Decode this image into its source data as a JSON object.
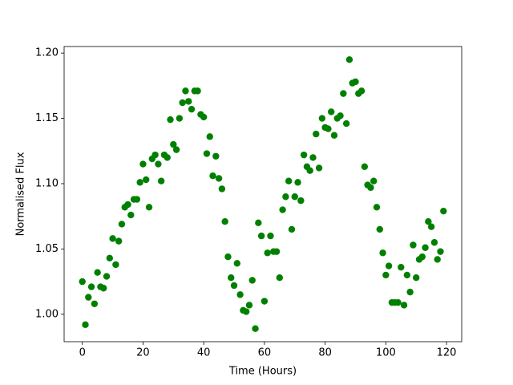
{
  "chart_data": {
    "type": "scatter",
    "x_label": "Time (Hours)",
    "y_label": "Normalised Flux",
    "color": "green",
    "grid": false,
    "xlim": [
      -6,
      125
    ],
    "ylim": [
      0.979,
      1.205
    ],
    "xticks": [
      0,
      20,
      40,
      60,
      80,
      100,
      120
    ],
    "yticks": [
      {
        "value": 1.0,
        "label": "1.00"
      },
      {
        "value": 1.05,
        "label": "1.05"
      },
      {
        "value": 1.1,
        "label": "1.10"
      },
      {
        "value": 1.15,
        "label": "1.15"
      },
      {
        "value": 1.2,
        "label": "1.20"
      }
    ],
    "x": [
      0,
      1,
      2,
      3,
      4,
      5,
      6,
      7,
      8,
      9,
      10,
      11,
      12,
      13,
      14,
      15,
      16,
      17,
      18,
      19,
      20,
      21,
      22,
      23,
      24,
      25,
      26,
      27,
      28,
      29,
      30,
      31,
      32,
      33,
      34,
      35,
      36,
      37,
      38,
      39,
      40,
      41,
      42,
      43,
      44,
      45,
      46,
      47,
      48,
      49,
      50,
      51,
      52,
      53,
      54,
      55,
      56,
      57,
      58,
      59,
      60,
      61,
      62,
      63,
      64,
      65,
      66,
      67,
      68,
      69,
      70,
      71,
      72,
      73,
      74,
      75,
      76,
      77,
      78,
      79,
      80,
      81,
      82,
      83,
      84,
      85,
      86,
      87,
      88,
      89,
      90,
      91,
      92,
      93,
      94,
      95,
      96,
      97,
      98,
      99,
      100,
      101,
      102,
      103,
      104,
      105,
      106,
      107,
      108,
      109,
      110,
      111,
      112,
      113,
      114,
      115,
      116,
      117,
      118,
      119
    ],
    "values": [
      1.025,
      0.992,
      1.013,
      1.021,
      1.008,
      1.032,
      1.021,
      1.02,
      1.029,
      1.043,
      1.058,
      1.038,
      1.056,
      1.069,
      1.082,
      1.084,
      1.076,
      1.088,
      1.088,
      1.101,
      1.115,
      1.103,
      1.082,
      1.119,
      1.122,
      1.115,
      1.102,
      1.122,
      1.12,
      1.149,
      1.13,
      1.126,
      1.15,
      1.162,
      1.171,
      1.163,
      1.157,
      1.171,
      1.171,
      1.153,
      1.151,
      1.123,
      1.136,
      1.106,
      1.121,
      1.104,
      1.096,
      1.071,
      1.044,
      1.028,
      1.022,
      1.039,
      1.015,
      1.003,
      1.002,
      1.007,
      1.026,
      0.989,
      1.07,
      1.06,
      1.01,
      1.047,
      1.06,
      1.048,
      1.048,
      1.028,
      1.08,
      1.09,
      1.102,
      1.065,
      1.09,
      1.101,
      1.087,
      1.122,
      1.113,
      1.11,
      1.12,
      1.138,
      1.112,
      1.15,
      1.143,
      1.142,
      1.155,
      1.137,
      1.15,
      1.152,
      1.169,
      1.146,
      1.195,
      1.177,
      1.178,
      1.169,
      1.171,
      1.113,
      1.099,
      1.097,
      1.102,
      1.082,
      1.065,
      1.047,
      1.03,
      1.037,
      1.009,
      1.009,
      1.009,
      1.036,
      1.007,
      1.03,
      1.017,
      1.053,
      1.028,
      1.042,
      1.044,
      1.051,
      1.071,
      1.067,
      1.055,
      1.042,
      1.048,
      1.079
    ]
  }
}
